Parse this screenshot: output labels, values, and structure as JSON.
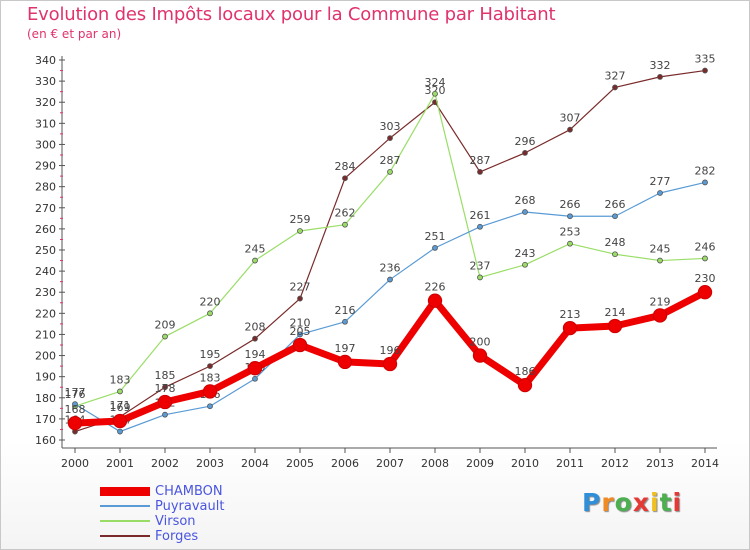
{
  "header": {
    "title": "Evolution des Impôts locaux pour la Commune par Habitant",
    "subtitle": "(en € et par an)"
  },
  "logo": {
    "text": [
      "P",
      "r",
      "o",
      "x",
      "i",
      "t",
      "i"
    ],
    "colors": [
      "#2f8fd8",
      "#f08a24",
      "#4caf50",
      "#e53935",
      "#f0c020",
      "#4caf50",
      "#e53935"
    ]
  },
  "chart_data": {
    "type": "line",
    "x": [
      "2000",
      "2001",
      "2002",
      "2003",
      "2004",
      "2005",
      "2006",
      "2007",
      "2008",
      "2009",
      "2010",
      "2011",
      "2012",
      "2013",
      "2014"
    ],
    "ylim": [
      160,
      340
    ],
    "yticks": [
      160,
      170,
      180,
      190,
      200,
      210,
      220,
      230,
      240,
      250,
      260,
      270,
      280,
      290,
      300,
      310,
      320,
      330,
      340
    ],
    "grid": false,
    "legend_position": "bottom-left",
    "series": [
      {
        "name": "Forges",
        "color": "#7a2a2a",
        "width": 1.2,
        "marker": 4,
        "values": [
          164,
          171,
          185,
          195,
          208,
          227,
          284,
          303,
          320,
          287,
          296,
          307,
          327,
          332,
          335
        ]
      },
      {
        "name": "Virson",
        "color": "#99dd66",
        "width": 1.2,
        "marker": 4,
        "values": [
          176,
          183,
          209,
          220,
          245,
          259,
          262,
          287,
          324,
          237,
          243,
          253,
          248,
          245,
          246
        ]
      },
      {
        "name": "Puyravault",
        "color": "#5a9bd5",
        "width": 1.2,
        "marker": 4,
        "values": [
          177,
          164,
          172,
          176,
          189,
          210,
          216,
          236,
          251,
          261,
          268,
          266,
          266,
          277,
          282
        ]
      },
      {
        "name": "CHAMBON",
        "color": "#ee0000",
        "width": 7,
        "marker": 8,
        "values": [
          168,
          169,
          178,
          183,
          194,
          205,
          197,
          196,
          226,
          200,
          186,
          213,
          214,
          219,
          230
        ]
      }
    ],
    "legend_order": [
      "CHAMBON",
      "Puyravault",
      "Virson",
      "Forges"
    ]
  }
}
